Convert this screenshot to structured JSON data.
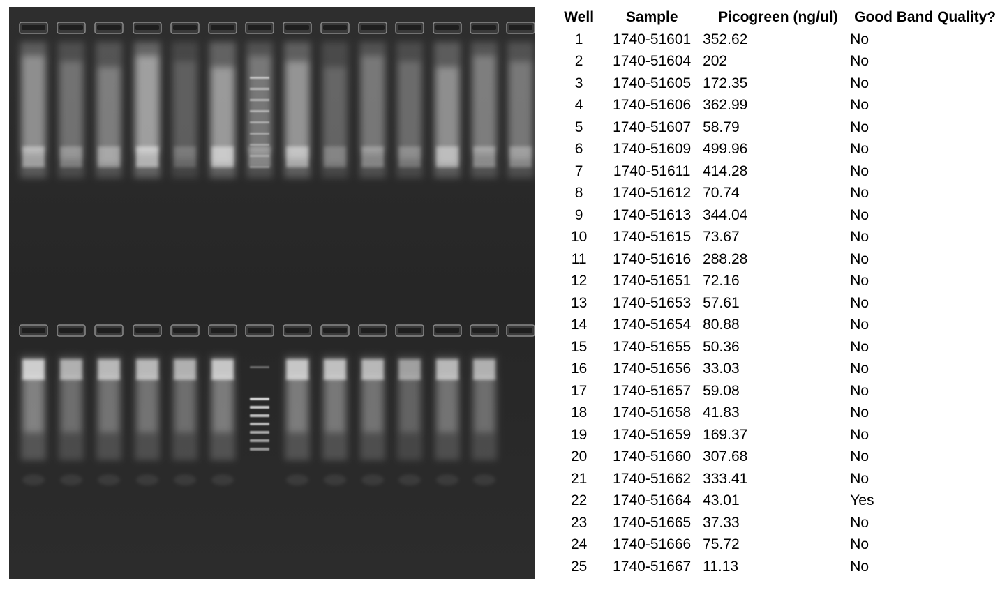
{
  "gel": {
    "description_icon": "agarose-gel-photo",
    "row_count": 2,
    "lanes_per_row": 14,
    "ladder_lane_index": 6
  },
  "table": {
    "headers": {
      "well": "Well",
      "sample": "Sample",
      "picogreen": "Picogreen (ng/ul)",
      "quality": "Good Band Quality?"
    },
    "rows": [
      {
        "well": "1",
        "sample": "1740-51601",
        "picogreen": "352.62",
        "quality": "No"
      },
      {
        "well": "2",
        "sample": "1740-51604",
        "picogreen": "202",
        "quality": "No"
      },
      {
        "well": "3",
        "sample": "1740-51605",
        "picogreen": "172.35",
        "quality": "No"
      },
      {
        "well": "4",
        "sample": "1740-51606",
        "picogreen": "362.99",
        "quality": "No"
      },
      {
        "well": "5",
        "sample": "1740-51607",
        "picogreen": "58.79",
        "quality": "No"
      },
      {
        "well": "6",
        "sample": "1740-51609",
        "picogreen": "499.96",
        "quality": "No"
      },
      {
        "well": "7",
        "sample": "1740-51611",
        "picogreen": "414.28",
        "quality": "No"
      },
      {
        "well": "8",
        "sample": "1740-51612",
        "picogreen": "70.74",
        "quality": "No"
      },
      {
        "well": "9",
        "sample": "1740-51613",
        "picogreen": "344.04",
        "quality": "No"
      },
      {
        "well": "10",
        "sample": "1740-51615",
        "picogreen": "73.67",
        "quality": "No"
      },
      {
        "well": "11",
        "sample": "1740-51616",
        "picogreen": "288.28",
        "quality": "No"
      },
      {
        "well": "12",
        "sample": "1740-51651",
        "picogreen": "72.16",
        "quality": "No"
      },
      {
        "well": "13",
        "sample": "1740-51653",
        "picogreen": "57.61",
        "quality": "No"
      },
      {
        "well": "14",
        "sample": "1740-51654",
        "picogreen": "80.88",
        "quality": "No"
      },
      {
        "well": "15",
        "sample": "1740-51655",
        "picogreen": "50.36",
        "quality": "No"
      },
      {
        "well": "16",
        "sample": "1740-51656",
        "picogreen": "33.03",
        "quality": "No"
      },
      {
        "well": "17",
        "sample": "1740-51657",
        "picogreen": "59.08",
        "quality": "No"
      },
      {
        "well": "18",
        "sample": "1740-51658",
        "picogreen": "41.83",
        "quality": "No"
      },
      {
        "well": "19",
        "sample": "1740-51659",
        "picogreen": "169.37",
        "quality": "No"
      },
      {
        "well": "20",
        "sample": "1740-51660",
        "picogreen": "307.68",
        "quality": "No"
      },
      {
        "well": "21",
        "sample": "1740-51662",
        "picogreen": "333.41",
        "quality": "No"
      },
      {
        "well": "22",
        "sample": "1740-51664",
        "picogreen": "43.01",
        "quality": "Yes"
      },
      {
        "well": "23",
        "sample": "1740-51665",
        "picogreen": "37.33",
        "quality": "No"
      },
      {
        "well": "24",
        "sample": "1740-51666",
        "picogreen": "75.72",
        "quality": "No"
      },
      {
        "well": "25",
        "sample": "1740-51667",
        "picogreen": "11.13",
        "quality": "No"
      }
    ]
  }
}
